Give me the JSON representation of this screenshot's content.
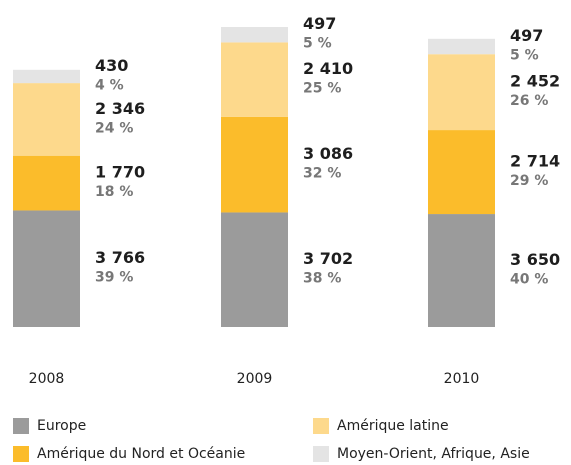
{
  "chart_data": {
    "type": "stacked_bar",
    "categories": [
      "2008",
      "2009",
      "2010"
    ],
    "series": [
      {
        "name": "Europe",
        "color": "#9b9b9b",
        "values": [
          3766,
          3702,
          3650
        ],
        "value_labels": [
          "3 766",
          "3 702",
          "3 650"
        ],
        "shares": [
          39,
          38,
          40
        ],
        "share_labels": [
          "39 %",
          "38 %",
          "40 %"
        ]
      },
      {
        "name": "Amérique du Nord et Océanie",
        "color": "#fbbc2b",
        "values": [
          1770,
          3086,
          2714
        ],
        "value_labels": [
          "1 770",
          "3 086",
          "2 714"
        ],
        "shares": [
          18,
          32,
          29
        ],
        "share_labels": [
          "18 %",
          "32 %",
          "29 %"
        ]
      },
      {
        "name": "Amérique latine",
        "color": "#fdd98c",
        "values": [
          2346,
          2410,
          2452
        ],
        "value_labels": [
          "2 346",
          "2 410",
          "2 452"
        ],
        "shares": [
          24,
          25,
          26
        ],
        "share_labels": [
          "24 %",
          "25 %",
          "26 %"
        ]
      },
      {
        "name": "Moyen-Orient, Afrique, Asie",
        "color": "#e4e4e4",
        "values": [
          430,
          497,
          497
        ],
        "value_labels": [
          "430",
          "497",
          "497"
        ],
        "shares": [
          4,
          5,
          5
        ],
        "share_labels": [
          "4 %",
          "5 %",
          "5 %"
        ]
      }
    ]
  }
}
